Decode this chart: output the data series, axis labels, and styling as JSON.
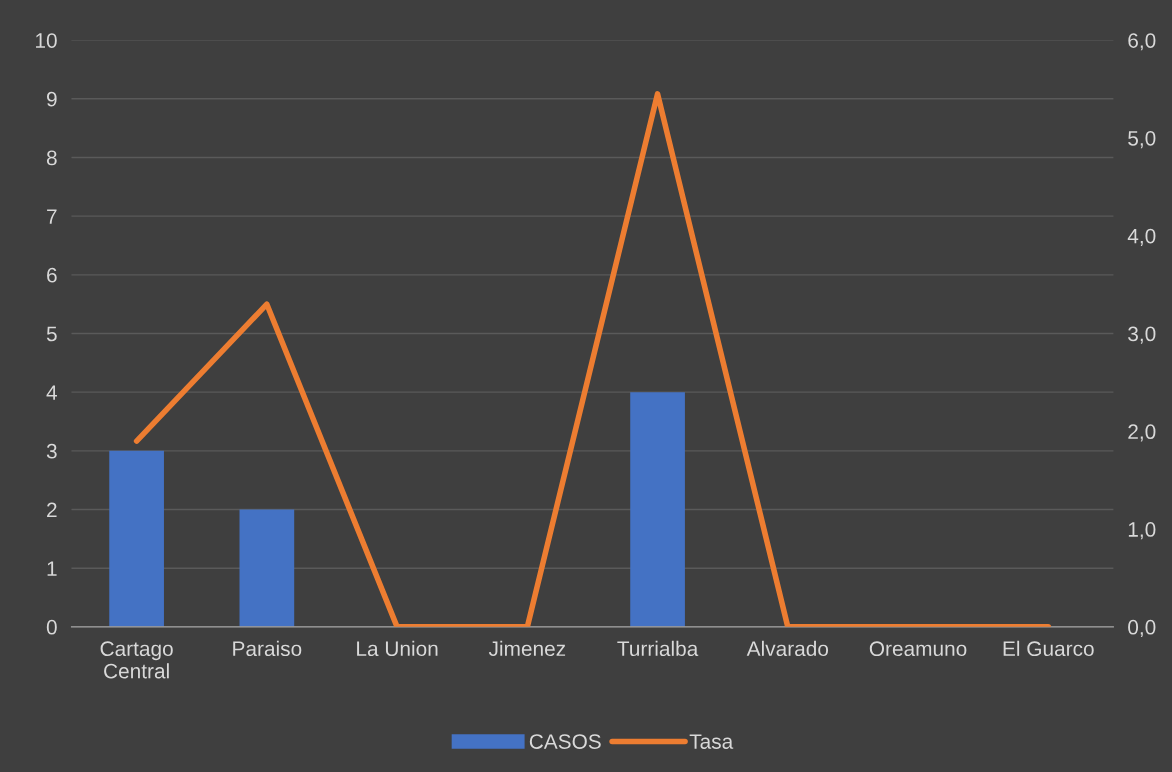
{
  "chart_data": {
    "type": "bar",
    "categories": [
      "Cartago\nCentral",
      "Paraiso",
      "La Union",
      "Jimenez",
      "Turrialba",
      "Alvarado",
      "Oreamuno",
      "El Guarco"
    ],
    "series": [
      {
        "name": "CASOS",
        "color": "#4472c4",
        "values": [
          3,
          2,
          0,
          0,
          4,
          0,
          0,
          0
        ]
      },
      {
        "name": "Tasa",
        "type": "line",
        "axis": "y2",
        "color": "#ed7d31",
        "values": [
          1.9,
          3.3,
          0,
          0,
          5.45,
          0,
          0,
          0
        ]
      }
    ],
    "ylim": [
      0,
      10
    ],
    "yticks": [
      0,
      1,
      2,
      3,
      4,
      5,
      6,
      7,
      8,
      9,
      10
    ],
    "y2lim": [
      0,
      6
    ],
    "y2ticks": [
      {
        "value": 0,
        "label": "0,0"
      },
      {
        "value": 1,
        "label": "1,0"
      },
      {
        "value": 2,
        "label": "2,0"
      },
      {
        "value": 3,
        "label": "3,0"
      },
      {
        "value": 4,
        "label": "4,0"
      },
      {
        "value": 5,
        "label": "5,0"
      },
      {
        "value": 6,
        "label": "6,0"
      }
    ],
    "grid": "y",
    "legend": "bottom",
    "marker": "none",
    "line_style": "solid"
  }
}
